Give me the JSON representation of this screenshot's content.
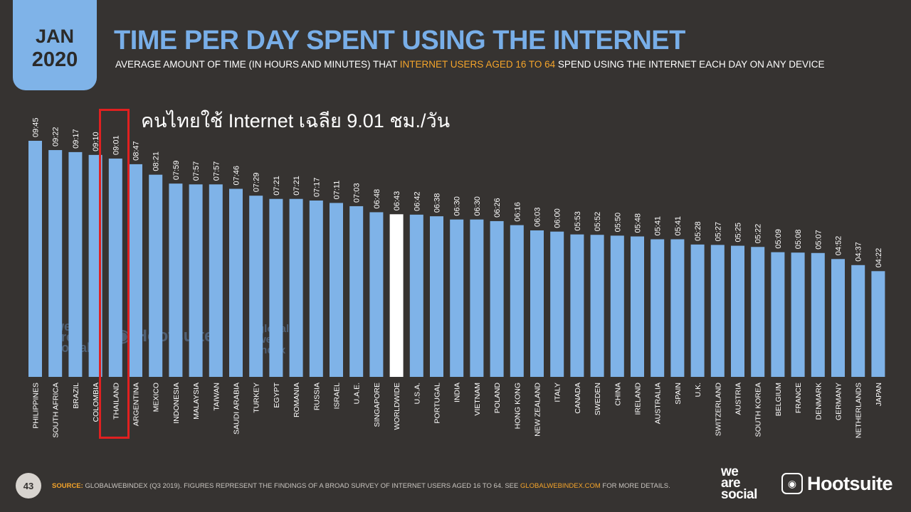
{
  "header": {
    "month": "JAN",
    "year": "2020",
    "title": "TIME PER DAY SPENT USING THE INTERNET",
    "subtitle_pre": "AVERAGE AMOUNT OF TIME (IN HOURS AND MINUTES) THAT ",
    "subtitle_highlight": "INTERNET USERS AGED 16 TO 64",
    "subtitle_post": " SPEND USING THE INTERNET EACH DAY ON ANY DEVICE"
  },
  "annotation": {
    "text": "คนไทยใช้ Internet เฉลีย 9.01 ชม./วัน",
    "highlighted_category": "THAILAND"
  },
  "colors": {
    "bar": "#7fb3e8",
    "worldwide_bar": "#ffffff",
    "highlight": "#e02020",
    "accent": "#f4a42a",
    "background": "#363331"
  },
  "chart_data": {
    "type": "bar",
    "categories": [
      "PHILIPPINES",
      "SOUTH AFRICA",
      "BRAZIL",
      "COLOMBIA",
      "THAILAND",
      "ARGENTINA",
      "MEXICO",
      "INDONESIA",
      "MALAYSIA",
      "TAIWAN",
      "SAUDI ARABIA",
      "TURKEY",
      "EGYPT",
      "ROMANIA",
      "RUSSIA",
      "ISRAEL",
      "U.A.E.",
      "SINGAPORE",
      "WORLDWIDE",
      "U.S.A.",
      "PORTUGAL",
      "INDIA",
      "VIETNAM",
      "POLAND",
      "HONG KONG",
      "NEW ZEALAND",
      "ITALY",
      "CANADA",
      "SWEDEN",
      "CHINA",
      "IRELAND",
      "AUSTRALIA",
      "SPAIN",
      "U.K.",
      "SWITZERLAND",
      "AUSTRIA",
      "SOUTH KOREA",
      "BELGIUM",
      "FRANCE",
      "DENMARK",
      "GERMANY",
      "NETHERLANDS",
      "JAPAN"
    ],
    "labels": [
      "09:45",
      "09:22",
      "09:17",
      "09:10",
      "09:01",
      "08:47",
      "08:21",
      "07:59",
      "07:57",
      "07:57",
      "07:46",
      "07:29",
      "07:21",
      "07:21",
      "07:17",
      "07:11",
      "07:03",
      "06:48",
      "06:43",
      "06:42",
      "06:38",
      "06:30",
      "06:30",
      "06:26",
      "06:16",
      "06:03",
      "06:00",
      "05:53",
      "05:52",
      "05:50",
      "05:48",
      "05:41",
      "05:41",
      "05:28",
      "05:27",
      "05:25",
      "05:22",
      "05:09",
      "05:08",
      "05:07",
      "04:52",
      "04:37",
      "04:22"
    ],
    "values_minutes": [
      585,
      562,
      557,
      550,
      541,
      527,
      501,
      479,
      477,
      477,
      466,
      449,
      441,
      441,
      437,
      431,
      423,
      408,
      403,
      402,
      398,
      390,
      390,
      386,
      376,
      363,
      360,
      353,
      352,
      350,
      348,
      341,
      341,
      328,
      327,
      325,
      322,
      309,
      308,
      307,
      292,
      277,
      262
    ],
    "highlight_category": "WORLDWIDE",
    "ylim_minutes": [
      0,
      585
    ]
  },
  "watermarks": {
    "was": [
      "we",
      "are",
      "social"
    ],
    "hootsuite": "Hootsuite",
    "gwi": [
      "global",
      "web",
      "index"
    ]
  },
  "footer": {
    "page": "43",
    "source_label": "SOURCE:",
    "source_text": " GLOBALWEBINDEX (Q3 2019). FIGURES REPRESENT THE FINDINGS OF A BROAD SURVEY OF INTERNET USERS AGED 16 TO 64. SEE ",
    "source_link": "GLOBALWEBINDEX.COM",
    "source_tail": " FOR MORE DETAILS.",
    "logo_was": [
      "we",
      "are",
      "social"
    ],
    "logo_hootsuite": "Hootsuite"
  }
}
